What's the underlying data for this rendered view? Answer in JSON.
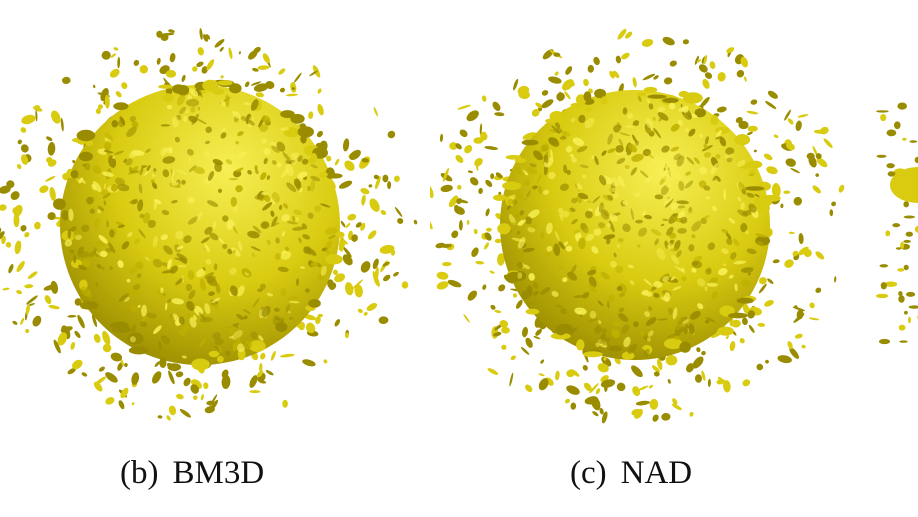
{
  "panels": [
    {
      "id": "b",
      "letter": "(b)",
      "label": "BM3D"
    },
    {
      "id": "c",
      "letter": "(c)",
      "label": "NAD"
    }
  ],
  "colors": {
    "surface": "#d9cb10",
    "highlight": "#f7ef54",
    "shadow": "#9a8c00",
    "background": "#ffffff"
  }
}
